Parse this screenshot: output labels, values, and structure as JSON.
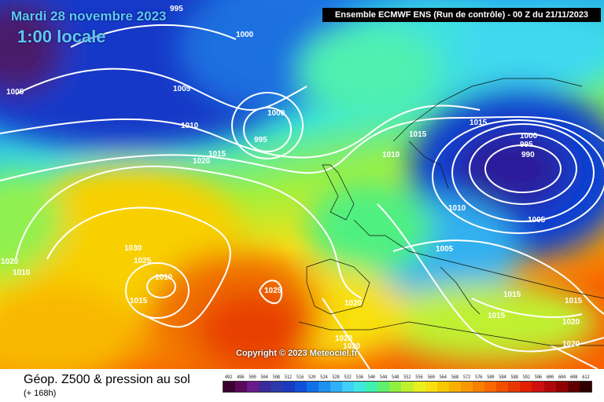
{
  "header": {
    "date_label": "Mardi 28 novembre 2023",
    "time_label": "1:00 locale",
    "model_label": "Ensemble ECMWF ENS  (Run de contrôle)  - 00 Z du 21/11/2023"
  },
  "map": {
    "copyright": "Copyright © 2023 Meteociel.fr",
    "isobar_labels": [
      "995",
      "1000",
      "1005",
      "1010",
      "1005",
      "1000",
      "995",
      "1015",
      "1020",
      "1010",
      "1015",
      "1000",
      "995",
      "990",
      "1005",
      "1010",
      "1015",
      "1005",
      "1030",
      "1025",
      "1015",
      "1010",
      "1025",
      "1020",
      "1020",
      "1020",
      "1015",
      "1015",
      "1020",
      "1020",
      "1020",
      "1015",
      "1010"
    ]
  },
  "footer": {
    "caption": "Géop. Z500 & pression au sol",
    "lead_time": "(+ 168h)"
  },
  "legend": {
    "labels": [
      "492",
      "496",
      "500",
      "504",
      "508",
      "512",
      "516",
      "520",
      "524",
      "528",
      "532",
      "536",
      "540",
      "544",
      "548",
      "552",
      "556",
      "560",
      "564",
      "568",
      "572",
      "576",
      "580",
      "584",
      "588",
      "592",
      "596",
      "600",
      "604",
      "608",
      "612"
    ],
    "colors": [
      "#3a0030",
      "#5a0a5a",
      "#6a1a8a",
      "#3a2a9a",
      "#2a3aaa",
      "#1a3ac0",
      "#1050d8",
      "#1070e8",
      "#2090f0",
      "#30b0f8",
      "#40d0f8",
      "#40e8e0",
      "#40f0b0",
      "#60f070",
      "#90f040",
      "#c0f030",
      "#e8f020",
      "#f8e010",
      "#f8c800",
      "#f8b000",
      "#f89800",
      "#f88000",
      "#f86800",
      "#f05000",
      "#e83800",
      "#e02000",
      "#d01010",
      "#b00808",
      "#900000",
      "#600000",
      "#300000"
    ]
  }
}
